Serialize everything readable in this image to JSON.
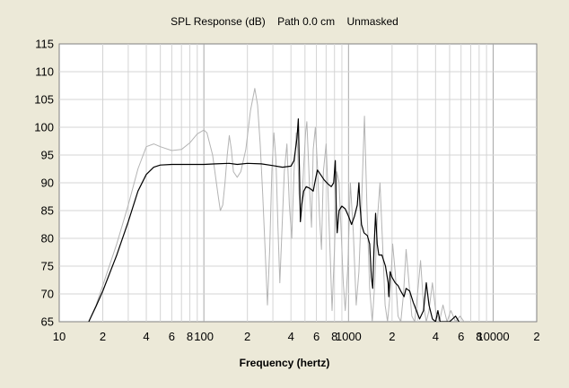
{
  "chart_data": {
    "type": "line",
    "title": "SPL Response (dB)    Path 0.0 cm    Unmasked",
    "xlabel": "Frequency (hertz)",
    "ylabel": "",
    "x_scale": "log",
    "xlim": [
      10,
      20000
    ],
    "ylim": [
      65,
      115
    ],
    "y_ticks": [
      65,
      70,
      75,
      80,
      85,
      90,
      95,
      100,
      105,
      110,
      115
    ],
    "x_ticks": [
      {
        "value": 10,
        "label": "10"
      },
      {
        "value": 20,
        "label": "2"
      },
      {
        "value": 40,
        "label": "4"
      },
      {
        "value": 60,
        "label": "6"
      },
      {
        "value": 80,
        "label": "8"
      },
      {
        "value": 100,
        "label": "100"
      },
      {
        "value": 200,
        "label": "2"
      },
      {
        "value": 400,
        "label": "4"
      },
      {
        "value": 600,
        "label": "6"
      },
      {
        "value": 800,
        "label": "8"
      },
      {
        "value": 1000,
        "label": "1000"
      },
      {
        "value": 2000,
        "label": "2"
      },
      {
        "value": 4000,
        "label": "4"
      },
      {
        "value": 6000,
        "label": "6"
      },
      {
        "value": 8000,
        "label": "8"
      },
      {
        "value": 10000,
        "label": "10000"
      },
      {
        "value": 20000,
        "label": "2"
      }
    ],
    "grid": true,
    "background": "#ffffff",
    "series": [
      {
        "color": "#b4b4b4",
        "points": [
          [
            16,
            65
          ],
          [
            18,
            68
          ],
          [
            20,
            71.5
          ],
          [
            25,
            79
          ],
          [
            30,
            86
          ],
          [
            35,
            92.5
          ],
          [
            40,
            96.5
          ],
          [
            45,
            97
          ],
          [
            50,
            96.5
          ],
          [
            60,
            95.8
          ],
          [
            70,
            96
          ],
          [
            80,
            97.2
          ],
          [
            90,
            98.8
          ],
          [
            100,
            99.5
          ],
          [
            105,
            99
          ],
          [
            115,
            95
          ],
          [
            125,
            88
          ],
          [
            130,
            85
          ],
          [
            135,
            86
          ],
          [
            140,
            90
          ],
          [
            145,
            95
          ],
          [
            150,
            98.5
          ],
          [
            155,
            96
          ],
          [
            160,
            92
          ],
          [
            170,
            91
          ],
          [
            180,
            92
          ],
          [
            195,
            96
          ],
          [
            210,
            103
          ],
          [
            225,
            107
          ],
          [
            235,
            104
          ],
          [
            245,
            97
          ],
          [
            255,
            88
          ],
          [
            265,
            78
          ],
          [
            275,
            68
          ],
          [
            285,
            78
          ],
          [
            295,
            92
          ],
          [
            305,
            99
          ],
          [
            315,
            94
          ],
          [
            325,
            82
          ],
          [
            335,
            72
          ],
          [
            345,
            80
          ],
          [
            360,
            92
          ],
          [
            375,
            97
          ],
          [
            390,
            86
          ],
          [
            405,
            80
          ],
          [
            420,
            92
          ],
          [
            435,
            99
          ],
          [
            445,
            96
          ],
          [
            455,
            88
          ],
          [
            470,
            84
          ],
          [
            490,
            93
          ],
          [
            505,
            99
          ],
          [
            515,
            101
          ],
          [
            525,
            96
          ],
          [
            540,
            88
          ],
          [
            555,
            82
          ],
          [
            570,
            96
          ],
          [
            590,
            100
          ],
          [
            610,
            93
          ],
          [
            630,
            84
          ],
          [
            650,
            78
          ],
          [
            670,
            92
          ],
          [
            700,
            97
          ],
          [
            720,
            89
          ],
          [
            745,
            78
          ],
          [
            770,
            67
          ],
          [
            800,
            78
          ],
          [
            830,
            92
          ],
          [
            860,
            90
          ],
          [
            890,
            81
          ],
          [
            920,
            72
          ],
          [
            950,
            67
          ],
          [
            990,
            75
          ],
          [
            1030,
            90
          ],
          [
            1080,
            81
          ],
          [
            1130,
            68
          ],
          [
            1180,
            74
          ],
          [
            1230,
            86
          ],
          [
            1290,
            102
          ],
          [
            1340,
            86
          ],
          [
            1400,
            71
          ],
          [
            1460,
            65
          ],
          [
            1520,
            72
          ],
          [
            1580,
            83
          ],
          [
            1650,
            90
          ],
          [
            1720,
            79
          ],
          [
            1790,
            68
          ],
          [
            1860,
            65
          ],
          [
            1940,
            70
          ],
          [
            2020,
            79
          ],
          [
            2100,
            74
          ],
          [
            2200,
            66
          ],
          [
            2300,
            65
          ],
          [
            2400,
            70
          ],
          [
            2500,
            78
          ],
          [
            2620,
            72
          ],
          [
            2740,
            66
          ],
          [
            2870,
            65
          ],
          [
            3000,
            70
          ],
          [
            3150,
            76
          ],
          [
            3300,
            68
          ],
          [
            3450,
            65
          ],
          [
            3600,
            67
          ],
          [
            3800,
            72
          ],
          [
            4000,
            67
          ],
          [
            4250,
            65
          ],
          [
            4500,
            68
          ],
          [
            4800,
            65
          ],
          [
            5100,
            67
          ],
          [
            5500,
            65
          ],
          [
            5900,
            66
          ],
          [
            6300,
            65
          ]
        ]
      },
      {
        "color": "#000000",
        "points": [
          [
            16,
            65
          ],
          [
            18,
            67.8
          ],
          [
            20,
            70.5
          ],
          [
            25,
            77
          ],
          [
            30,
            83
          ],
          [
            35,
            88.5
          ],
          [
            40,
            91.5
          ],
          [
            45,
            92.8
          ],
          [
            50,
            93.2
          ],
          [
            60,
            93.3
          ],
          [
            80,
            93.3
          ],
          [
            100,
            93.3
          ],
          [
            120,
            93.4
          ],
          [
            150,
            93.5
          ],
          [
            170,
            93.3
          ],
          [
            200,
            93.5
          ],
          [
            250,
            93.4
          ],
          [
            300,
            93.1
          ],
          [
            350,
            92.8
          ],
          [
            400,
            93
          ],
          [
            420,
            94
          ],
          [
            440,
            98
          ],
          [
            450,
            101.5
          ],
          [
            458,
            92
          ],
          [
            465,
            83
          ],
          [
            475,
            86
          ],
          [
            490,
            88.5
          ],
          [
            510,
            89.3
          ],
          [
            540,
            89
          ],
          [
            570,
            88.5
          ],
          [
            595,
            91
          ],
          [
            610,
            92.3
          ],
          [
            640,
            91.5
          ],
          [
            680,
            90.5
          ],
          [
            720,
            89.8
          ],
          [
            760,
            89.3
          ],
          [
            790,
            90
          ],
          [
            810,
            94
          ],
          [
            822,
            86
          ],
          [
            835,
            81
          ],
          [
            860,
            85
          ],
          [
            900,
            85.8
          ],
          [
            950,
            85.3
          ],
          [
            1000,
            84
          ],
          [
            1050,
            82.5
          ],
          [
            1100,
            84
          ],
          [
            1150,
            86
          ],
          [
            1180,
            90
          ],
          [
            1200,
            86
          ],
          [
            1230,
            82.5
          ],
          [
            1280,
            81
          ],
          [
            1350,
            80.5
          ],
          [
            1400,
            79
          ],
          [
            1440,
            73
          ],
          [
            1470,
            71
          ],
          [
            1500,
            78
          ],
          [
            1540,
            84.5
          ],
          [
            1580,
            79
          ],
          [
            1620,
            77
          ],
          [
            1700,
            77
          ],
          [
            1800,
            75
          ],
          [
            1880,
            72
          ],
          [
            1900,
            69.5
          ],
          [
            1940,
            74
          ],
          [
            2000,
            73
          ],
          [
            2100,
            72
          ],
          [
            2200,
            71.5
          ],
          [
            2300,
            70.5
          ],
          [
            2420,
            69.5
          ],
          [
            2500,
            71
          ],
          [
            2650,
            70.5
          ],
          [
            2800,
            68.5
          ],
          [
            2950,
            67
          ],
          [
            3100,
            65.5
          ],
          [
            3300,
            67
          ],
          [
            3450,
            72
          ],
          [
            3600,
            68
          ],
          [
            3800,
            65.5
          ],
          [
            4000,
            65
          ],
          [
            4150,
            67
          ],
          [
            4300,
            65
          ],
          [
            5000,
            65
          ],
          [
            5500,
            66
          ],
          [
            5800,
            65
          ]
        ]
      }
    ]
  }
}
